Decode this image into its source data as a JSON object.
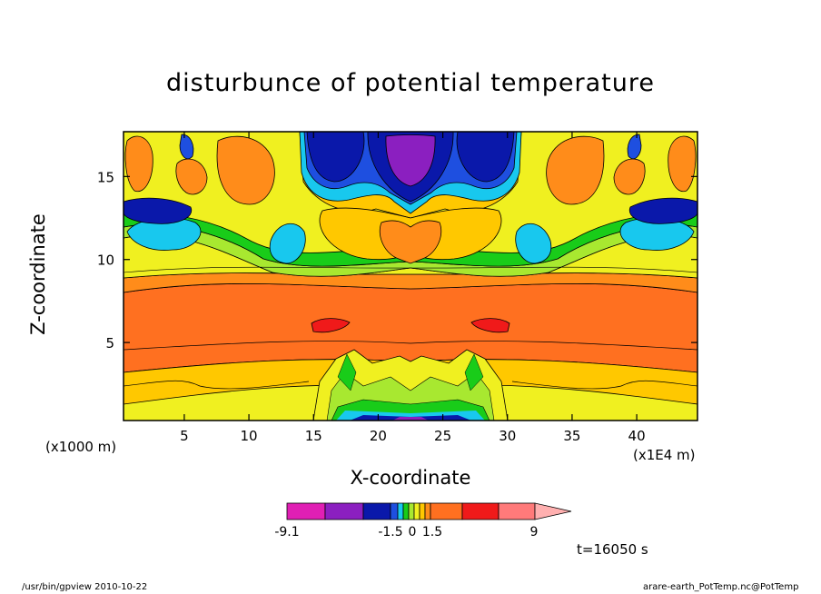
{
  "title": "disturbunce of potential temperature",
  "footer_left": "/usr/bin/gpview  2010-10-22",
  "footer_right": "arare-earth_PotTemp.nc@PotTemp",
  "time_label": "t=16050 s",
  "x_unit_label": "(x1000 m)",
  "x_scale_label": "(x1E4 m)",
  "chart_data": {
    "type": "heatmap",
    "title": "disturbunce of potential temperature",
    "xlabel": "X-coordinate",
    "ylabel": "Z-coordinate",
    "xlim": [
      0.3,
      44.7
    ],
    "ylim": [
      0.3,
      17.7
    ],
    "x_ticks": [
      5,
      10,
      15,
      20,
      25,
      30,
      35,
      40
    ],
    "y_ticks": [
      5,
      10,
      15
    ],
    "colorbar": {
      "tick_labels": [
        "-9.1",
        "-1.5",
        "0",
        "1.5",
        "9"
      ],
      "colors": [
        "#e01fb4",
        "#8b1fc0",
        "#0a18aa",
        "#1e4fe0",
        "#18c8ee",
        "#19cc19",
        "#a8e830",
        "#f0f020",
        "#ffc800",
        "#ff8c1a",
        "#ff7020",
        "#f01a1a",
        "#ff7a7a",
        "#ffb0b0"
      ]
    }
  }
}
